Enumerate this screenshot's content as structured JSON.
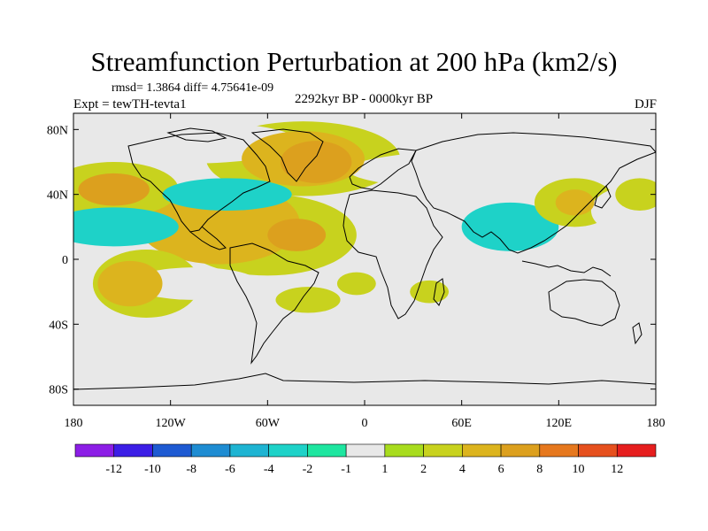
{
  "chart_data": {
    "type": "heatmap",
    "title": "Streamfunction Perturbation at 200 hPa (km2/s)",
    "subtitle_stats": "rmsd= 1.3864  diff= 4.75641e-09",
    "subtitle_period": "2292kyr BP - 0000kyr BP",
    "subtitle_experiment": "Expt = tewTH-tevta1",
    "subtitle_season": "DJF",
    "x_axis": {
      "range": [
        -180,
        180
      ],
      "ticks": [
        {
          "value": -180,
          "label": "180"
        },
        {
          "value": -120,
          "label": "120W"
        },
        {
          "value": -60,
          "label": "60W"
        },
        {
          "value": 0,
          "label": "0"
        },
        {
          "value": 60,
          "label": "60E"
        },
        {
          "value": 120,
          "label": "120E"
        },
        {
          "value": 180,
          "label": "180"
        }
      ]
    },
    "y_axis": {
      "range": [
        -90,
        90
      ],
      "ticks": [
        {
          "value": 80,
          "label": "80N"
        },
        {
          "value": 40,
          "label": "40N"
        },
        {
          "value": 0,
          "label": "0"
        },
        {
          "value": -40,
          "label": "40S"
        },
        {
          "value": -80,
          "label": "80S"
        }
      ]
    },
    "colorbar": {
      "colors": [
        "#8c1ee6",
        "#3c1ee6",
        "#1e5ad2",
        "#1e8cd2",
        "#1eb4d2",
        "#1ed2c8",
        "#1ee6a0",
        "#e8e8e8",
        "#a8dc1e",
        "#c8d21e",
        "#dcb41e",
        "#dca01e",
        "#e6781e",
        "#e6501e",
        "#e61e1e"
      ],
      "labels": [
        "-12",
        "-10",
        "-8",
        "-6",
        "-4",
        "-2",
        "-1",
        "1",
        "2",
        "4",
        "6",
        "8",
        "10",
        "12"
      ]
    },
    "features": [
      {
        "lon": -155,
        "lat": 43,
        "value": 6,
        "rx": 22,
        "ry": 10
      },
      {
        "lon": -155,
        "lat": 43,
        "value": 2,
        "rx": 40,
        "ry": 17
      },
      {
        "lon": -155,
        "lat": 20,
        "value": -3,
        "rx": 40,
        "ry": 12
      },
      {
        "lon": -90,
        "lat": 22,
        "value": 4,
        "rx": 50,
        "ry": 25
      },
      {
        "lon": -42,
        "lat": 15,
        "value": 6,
        "rx": 18,
        "ry": 10
      },
      {
        "lon": -60,
        "lat": 15,
        "value": 2,
        "rx": 55,
        "ry": 25
      },
      {
        "lon": -30,
        "lat": 60,
        "value": 6,
        "rx": 22,
        "ry": 13
      },
      {
        "lon": -38,
        "lat": 62,
        "value": 4,
        "rx": 38,
        "ry": 17
      },
      {
        "lon": -38,
        "lat": 62,
        "value": 2,
        "rx": 60,
        "ry": 23
      },
      {
        "lon": -85,
        "lat": 40,
        "value": -3,
        "rx": 40,
        "ry": 10
      },
      {
        "lon": -110,
        "lat": 72,
        "value": -1,
        "rx": 70,
        "ry": 13
      },
      {
        "lon": 90,
        "lat": 55,
        "value": -1,
        "rx": 100,
        "ry": 13
      },
      {
        "lon": 90,
        "lat": 20,
        "value": -3,
        "rx": 30,
        "ry": 15
      },
      {
        "lon": 130,
        "lat": 35,
        "value": 2,
        "rx": 25,
        "ry": 15
      },
      {
        "lon": 130,
        "lat": 35,
        "value": 4,
        "rx": 12,
        "ry": 8
      },
      {
        "lon": -145,
        "lat": -15,
        "value": 4,
        "rx": 20,
        "ry": 14
      },
      {
        "lon": -135,
        "lat": -15,
        "value": 2,
        "rx": 33,
        "ry": 21
      },
      {
        "lon": -105,
        "lat": -15,
        "value": -1,
        "rx": 40,
        "ry": 10
      },
      {
        "lon": -35,
        "lat": -25,
        "value": 2,
        "rx": 20,
        "ry": 8
      },
      {
        "lon": -30,
        "lat": -30,
        "value": -1,
        "rx": 20,
        "ry": 10
      },
      {
        "lon": -5,
        "lat": -15,
        "value": 2,
        "rx": 12,
        "ry": 7
      },
      {
        "lon": 45,
        "lat": -40,
        "value": -1,
        "rx": 25,
        "ry": 8
      },
      {
        "lon": 40,
        "lat": -20,
        "value": 2,
        "rx": 12,
        "ry": 7
      },
      {
        "lon": 150,
        "lat": -30,
        "value": -1,
        "rx": 30,
        "ry": 13
      },
      {
        "lon": 165,
        "lat": 30,
        "value": -1,
        "rx": 25,
        "ry": 15
      },
      {
        "lon": 170,
        "lat": 40,
        "value": 2,
        "rx": 15,
        "ry": 10
      }
    ]
  }
}
